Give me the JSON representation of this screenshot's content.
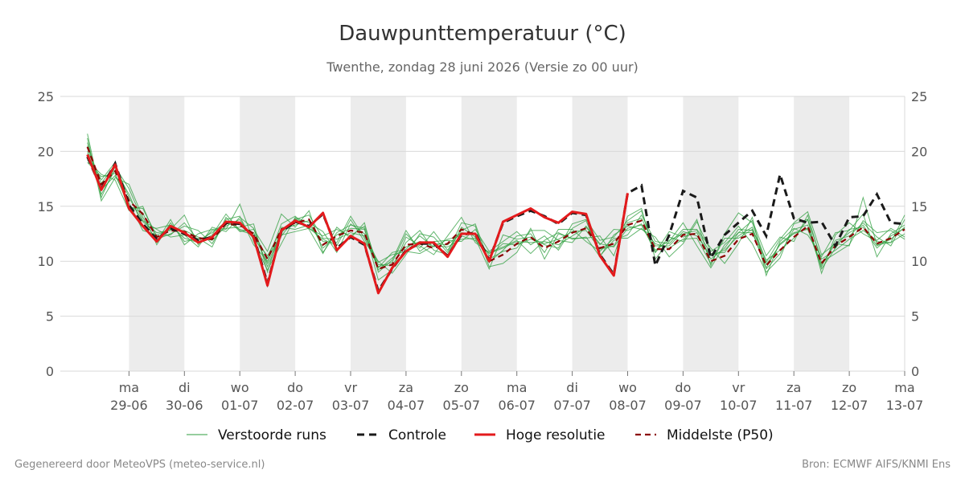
{
  "title": "Dauwpunttemperatuur (°C)",
  "subtitle": "Twenthe, zondag 28 juni 2026 (Versie zo 00 uur)",
  "footer": {
    "left": "Gegenereerd door MeteoVPS (meteo-service.nl)",
    "right": "Bron: ECMWF AIFS/KNMI Ens"
  },
  "colors": {
    "ensemble": "#2e9e3e",
    "control": "#1a1a1a",
    "high_res": "#e31a1c",
    "median": "#8b0000",
    "weekend_band": "#ececec",
    "grid": "#d9d9d9"
  },
  "chart_data": {
    "type": "line",
    "x_unit": "days after 28-06 00:00",
    "xlim": [
      0,
      15
    ],
    "ylim": [
      0,
      25
    ],
    "y_ticks": [
      0,
      5,
      10,
      15,
      20,
      25
    ],
    "grid": "horizontal",
    "legend_position": "bottom",
    "x_ticks": [
      {
        "x": 1,
        "day": "ma",
        "date": "29-06"
      },
      {
        "x": 2,
        "day": "di",
        "date": "30-06"
      },
      {
        "x": 3,
        "day": "wo",
        "date": "01-07"
      },
      {
        "x": 4,
        "day": "do",
        "date": "02-07"
      },
      {
        "x": 5,
        "day": "vr",
        "date": "03-07"
      },
      {
        "x": 6,
        "day": "za",
        "date": "04-07"
      },
      {
        "x": 7,
        "day": "zo",
        "date": "05-07"
      },
      {
        "x": 8,
        "day": "ma",
        "date": "06-07"
      },
      {
        "x": 9,
        "day": "di",
        "date": "07-07"
      },
      {
        "x": 10,
        "day": "wo",
        "date": "08-07"
      },
      {
        "x": 11,
        "day": "do",
        "date": "09-07"
      },
      {
        "x": 12,
        "day": "vr",
        "date": "10-07"
      },
      {
        "x": 13,
        "day": "za",
        "date": "11-07"
      },
      {
        "x": 14,
        "day": "zo",
        "date": "12-07"
      },
      {
        "x": 15,
        "day": "ma",
        "date": "13-07"
      }
    ],
    "shaded_days": [
      [
        1,
        2
      ],
      [
        3,
        4
      ],
      [
        5,
        6
      ],
      [
        7,
        8
      ],
      [
        9,
        10
      ],
      [
        11,
        12
      ],
      [
        13,
        14
      ]
    ],
    "legend": [
      {
        "label": "Verstoorde runs",
        "key": "ensemble"
      },
      {
        "label": "Controle",
        "key": "control"
      },
      {
        "label": "Hoge resolutie",
        "key": "high_res"
      },
      {
        "label": "Middelste (P50)",
        "key": "median"
      }
    ],
    "series": {
      "high_res": {
        "x": [
          0.25,
          0.5,
          0.75,
          1,
          1.25,
          1.5,
          1.75,
          2,
          2.25,
          2.5,
          2.75,
          3,
          3.25,
          3.5,
          3.75,
          4,
          4.25,
          4.5,
          4.75,
          5,
          5.25,
          5.5,
          5.75,
          6,
          6.25,
          6.5,
          6.75,
          7,
          7.25,
          7.5,
          7.75,
          8,
          8.25,
          8.5,
          8.75,
          9,
          9.25,
          9.5,
          9.75,
          10
        ],
        "y": [
          19.7,
          16.5,
          18.8,
          14.8,
          13.2,
          11.8,
          13.2,
          12.6,
          11.7,
          12.2,
          13.6,
          13.5,
          12.2,
          7.8,
          12.8,
          13.7,
          13.1,
          14.4,
          11.0,
          12.3,
          11.6,
          7.1,
          9.4,
          10.9,
          11.7,
          11.7,
          10.4,
          12.5,
          12.5,
          10.0,
          13.6,
          14.2,
          14.8,
          14.0,
          13.5,
          14.5,
          14.3,
          10.5,
          8.7,
          16.2
        ]
      },
      "control": {
        "x": [
          0.25,
          0.5,
          0.75,
          1,
          1.25,
          1.5,
          1.75,
          2,
          2.25,
          2.5,
          2.75,
          3,
          3.25,
          3.5,
          3.75,
          4,
          4.25,
          4.5,
          4.75,
          5,
          5.25,
          5.5,
          5.75,
          6,
          6.25,
          6.5,
          6.75,
          7,
          7.25,
          7.5,
          7.75,
          8,
          8.25,
          8.5,
          8.75,
          9,
          9.25,
          9.5,
          9.75,
          10,
          10.25,
          10.5,
          10.75,
          11,
          11.25,
          11.5,
          11.75,
          12,
          12.25,
          12.5,
          12.75,
          13,
          13.25,
          13.5,
          13.75,
          14,
          14.25,
          14.5,
          14.75,
          15
        ],
        "y": [
          19.5,
          16.6,
          18.9,
          15.1,
          13.4,
          12.0,
          13.0,
          12.5,
          11.9,
          12.2,
          13.5,
          13.4,
          12.3,
          8.0,
          12.7,
          13.6,
          13.2,
          14.3,
          11.2,
          12.2,
          11.5,
          7.3,
          9.3,
          11.0,
          11.6,
          11.6,
          10.5,
          12.4,
          12.6,
          10.1,
          13.5,
          14.1,
          14.6,
          14.1,
          13.4,
          14.4,
          14.2,
          10.6,
          8.8,
          16.2,
          16.9,
          9.6,
          12.4,
          16.4,
          15.8,
          10.3,
          12.4,
          13.5,
          14.6,
          12.3,
          17.9,
          13.9,
          13.5,
          13.6,
          11.4,
          14.0,
          14.1,
          16.1,
          13.5,
          13.4
        ]
      },
      "median": {
        "x": [
          0.25,
          0.5,
          0.75,
          1,
          1.25,
          1.5,
          1.75,
          2,
          2.25,
          2.5,
          2.75,
          3,
          3.25,
          3.5,
          3.75,
          4,
          4.25,
          4.5,
          4.75,
          5,
          5.25,
          5.5,
          5.75,
          6,
          6.25,
          6.5,
          6.75,
          7,
          7.25,
          7.5,
          7.75,
          8,
          8.25,
          8.5,
          8.75,
          9,
          9.25,
          9.5,
          9.75,
          10,
          10.25,
          10.5,
          10.75,
          11,
          11.25,
          11.5,
          11.75,
          12,
          12.25,
          12.5,
          12.75,
          13,
          13.25,
          13.5,
          13.75,
          14,
          14.25,
          14.5,
          14.75,
          15
        ],
        "y": [
          20.4,
          17.0,
          18.2,
          15.5,
          14.3,
          12.2,
          12.8,
          12.7,
          12.1,
          12.0,
          13.4,
          13.3,
          12.5,
          10.2,
          12.9,
          13.5,
          13.8,
          11.5,
          12.3,
          12.8,
          12.6,
          9.3,
          9.7,
          11.5,
          11.6,
          11.2,
          11.6,
          12.9,
          12.4,
          10.0,
          10.6,
          11.6,
          12.2,
          11.2,
          11.8,
          12.6,
          13.0,
          11.2,
          11.6,
          13.3,
          13.7,
          11.1,
          11.1,
          12.4,
          12.5,
          10.0,
          10.5,
          12.0,
          12.5,
          9.6,
          11.0,
          12.2,
          13.2,
          9.8,
          11.4,
          12.2,
          13.1,
          11.6,
          12.1,
          12.9
        ]
      }
    },
    "ensemble_runs": [
      [
        20.5,
        16.5,
        17.8,
        15.3,
        12.8,
        12.4,
        12.9,
        14.2,
        11.5,
        12.8,
        12.9,
        15.2,
        11.8,
        9.2,
        11.6,
        14.0,
        13.5,
        12.7,
        10.8,
        13.4,
        12.5,
        9.9,
        10.6,
        10.9,
        10.7,
        11.4,
        11.3,
        12.0,
        12.1,
        9.3,
        12.4,
        12.0,
        12.2,
        11.5,
        11.2,
        13.4,
        13.8,
        11.9,
        12.2,
        13.7,
        14.6,
        10.8,
        12.2,
        11.8,
        13.8,
        9.6,
        12.5,
        14.4,
        13.5,
        9.9,
        12.0,
        13.5,
        14.5,
        10.6,
        11.6,
        11.4,
        15.8,
        11.5,
        11.7,
        12.5
      ],
      [
        20.0,
        17.4,
        19.0,
        15.0,
        14.4,
        11.5,
        13.5,
        11.8,
        12.1,
        11.3,
        14.0,
        12.7,
        12.9,
        10.9,
        14.3,
        13.1,
        14.6,
        10.8,
        12.6,
        13.3,
        13.0,
        8.3,
        9.2,
        12.2,
        11.4,
        10.6,
        12.3,
        14.0,
        11.7,
        10.8,
        11.3,
        11.9,
        10.7,
        11.9,
        12.6,
        12.0,
        12.2,
        10.4,
        12.4,
        13.2,
        12.9,
        12.2,
        10.4,
        11.6,
        13.6,
        10.9,
        11.7,
        13.2,
        11.6,
        9.0,
        10.3,
        13.4,
        13.8,
        8.9,
        12.4,
        13.5,
        12.5,
        11.8,
        11.7,
        14.2
      ],
      [
        21.6,
        15.8,
        18.6,
        16.6,
        13.7,
        12.9,
        12.2,
        12.4,
        11.3,
        13.1,
        12.7,
        14.0,
        13.0,
        9.5,
        12.4,
        12.7,
        13.0,
        12.0,
        11.4,
        13.8,
        11.8,
        10.0,
        8.9,
        10.6,
        12.5,
        12.2,
        10.8,
        13.5,
        13.2,
        9.5,
        9.8,
        10.8,
        13.0,
        10.2,
        12.5,
        12.1,
        12.1,
        12.3,
        10.5,
        14.1,
        14.8,
        10.2,
        11.8,
        13.5,
        11.4,
        9.4,
        11.5,
        12.6,
        13.7,
        10.5,
        12.2,
        11.8,
        14.2,
        9.9,
        10.7,
        11.5,
        13.7,
        12.6,
        12.8,
        12.0
      ],
      [
        19.2,
        17.9,
        17.4,
        14.6,
        15.0,
        12.0,
        12.5,
        13.2,
        12.8,
        11.6,
        13.8,
        14.1,
        11.5,
        10.0,
        13.4,
        14.1,
        12.9,
        10.7,
        13.1,
        12.1,
        13.5,
        9.0,
        10.1,
        12.8,
        10.9,
        11.8,
        11.9,
        11.8,
        12.9,
        10.9,
        11.8,
        12.7,
        11.5,
        12.3,
        11.0,
        13.0,
        13.7,
        10.5,
        11.9,
        12.4,
        14.2,
        11.8,
        11.6,
        12.9,
        12.9,
        11.2,
        9.8,
        11.6,
        14.0,
        8.7,
        11.8,
        13.0,
        12.4,
        10.4,
        12.6,
        12.8,
        14.3,
        10.4,
        12.5,
        13.3
      ],
      [
        20.8,
        16.1,
        18.3,
        16.1,
        13.2,
        13.0,
        13.3,
        12.1,
        11.7,
        12.4,
        14.3,
        12.8,
        12.4,
        9.8,
        12.6,
        13.8,
        14.2,
        12.1,
        12.0,
        12.6,
        12.3,
        9.7,
        9.6,
        11.7,
        12.8,
        11.0,
        10.6,
        13.1,
        12.2,
        10.2,
        10.9,
        11.2,
        12.8,
        12.8,
        11.9,
        11.7,
        13.2,
        11.5,
        12.9,
        12.8,
        13.4,
        10.8,
        12.7,
        12.2,
        12.6,
        10.2,
        11.2,
        12.9,
        12.8,
        9.3,
        10.7,
        12.9,
        13.3,
        9.5,
        11.9,
        12.3,
        13.5,
        12.2,
        11.4,
        13.8
      ],
      [
        19.8,
        17.1,
        18.8,
        15.8,
        13.6,
        12.6,
        12.8,
        12.8,
        12.2,
        11.9,
        13.2,
        13.8,
        12.1,
        10.5,
        12.9,
        13.3,
        13.7,
        11.2,
        12.4,
        13.0,
        12.9,
        9.2,
        10.3,
        11.3,
        11.8,
        11.6,
        11.5,
        12.6,
        12.5,
        10.5,
        11.6,
        11.5,
        12.0,
        11.6,
        12.0,
        12.7,
        12.8,
        11.1,
        11.4,
        13.5,
        13.9,
        11.4,
        11.4,
        12.7,
        12.3,
        10.5,
        11.0,
        12.3,
        13.1,
        9.7,
        11.5,
        12.5,
        13.0,
        9.3,
        11.2,
        12.9,
        13.1,
        11.2,
        12.3,
        13.0
      ],
      [
        21.2,
        15.5,
        17.6,
        17.0,
        14.0,
        11.8,
        13.8,
        11.5,
        12.5,
        12.9,
        13.0,
        13.1,
        13.4,
        9.0,
        13.1,
        12.9,
        13.3,
        11.8,
        11.7,
        14.1,
        12.1,
        9.5,
        9.9,
        12.5,
        11.2,
        12.7,
        11.0,
        12.8,
        13.4,
        9.9,
        11.0,
        12.3,
        12.5,
        10.8,
        12.9,
        12.9,
        11.8,
        10.9,
        12.1,
        12.1,
        13.0,
        11.6,
        11.2,
        12.0,
        12.1,
        9.8,
        12.1,
        12.1,
        12.9,
        10.1,
        11.0,
        12.1,
        13.8,
        10.2,
        11.0,
        12.0,
        12.8,
        11.9,
        13.0,
        12.2
      ],
      [
        19.0,
        17.7,
        18.0,
        14.9,
        14.8,
        12.3,
        12.4,
        13.5,
        11.9,
        12.6,
        13.6,
        12.9,
        12.6,
        10.3,
        12.3,
        13.9,
        13.0,
        12.3,
        12.9,
        12.3,
        13.2,
        9.4,
        10.8,
        11.1,
        12.3,
        11.3,
        12.0,
        12.3,
        11.9,
        10.7,
        11.2,
        11.8,
        11.7,
        11.8,
        11.5,
        12.3,
        13.1,
        11.6,
        11.3,
        13.0,
        13.3,
        11.0,
        11.9,
        12.5,
        12.8,
        10.7,
        10.8,
        12.6,
        12.6,
        9.4,
        11.6,
        12.6,
        12.9,
        9.7,
        11.6,
        12.6,
        13.3,
        11.4,
        12.0,
        13.1
      ]
    ]
  }
}
